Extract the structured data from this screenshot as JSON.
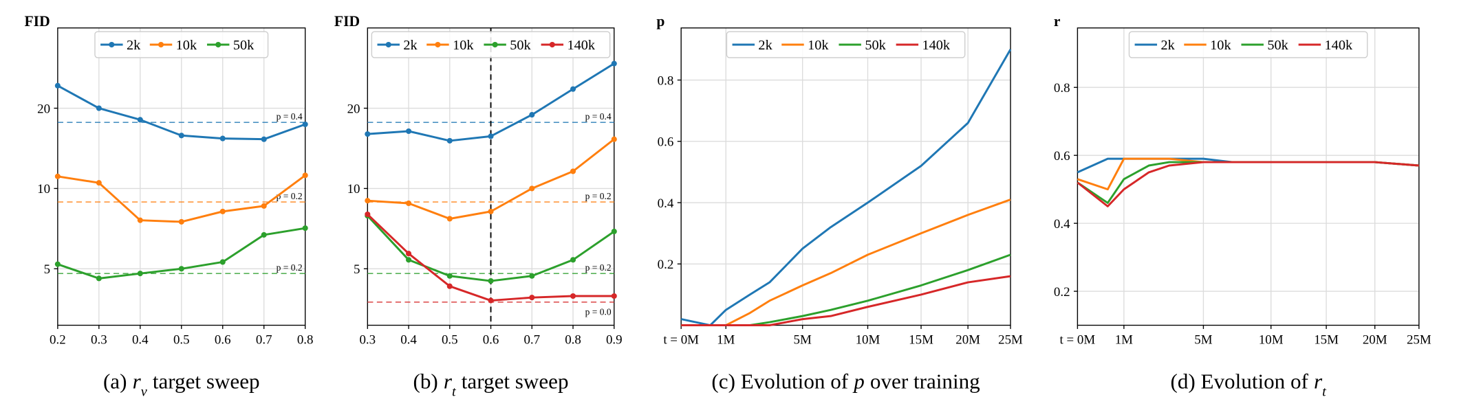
{
  "chart_data": [
    {
      "type": "line",
      "ylabel": "FID",
      "yscale": "log",
      "grid": true,
      "markers": true,
      "legend": "upper center",
      "caption": [
        {
          "text": "(a)"
        },
        {
          "text": "r",
          "style": "math"
        },
        {
          "text": "v",
          "style": "sub"
        },
        {
          "text": "target sweep"
        }
      ],
      "x": [
        0.2,
        0.3,
        0.4,
        0.5,
        0.6,
        0.7,
        0.8
      ],
      "xlim": [
        0.2,
        0.8
      ],
      "xticks": [
        0.2,
        0.3,
        0.4,
        0.5,
        0.6,
        0.7,
        0.8
      ],
      "ylim": [
        3.07,
        40
      ],
      "yticks": [
        5,
        10,
        20
      ],
      "series": [
        {
          "name": "2k",
          "color": "#1f77b4",
          "values": [
            24.3,
            20,
            18.1,
            15.8,
            15.4,
            15.3,
            17.4
          ]
        },
        {
          "name": "10k",
          "color": "#ff7f0e",
          "values": [
            11.1,
            10.5,
            7.6,
            7.5,
            8.2,
            8.6,
            11.2
          ]
        },
        {
          "name": "50k",
          "color": "#2ca02c",
          "values": [
            5.2,
            4.6,
            4.8,
            5.0,
            5.3,
            6.7,
            7.1
          ]
        }
      ],
      "refs": [
        {
          "value": 17.7,
          "label": "p = 0.4",
          "color": "#1f77b4"
        },
        {
          "value": 8.9,
          "label": "p = 0.2",
          "color": "#ff7f0e"
        },
        {
          "value": 4.8,
          "label": "p = 0.2",
          "color": "#2ca02c"
        }
      ]
    },
    {
      "type": "line",
      "ylabel": "FID",
      "yscale": "log",
      "grid": true,
      "markers": true,
      "legend": "upper center",
      "caption": [
        {
          "text": "(b)"
        },
        {
          "text": "r",
          "style": "math"
        },
        {
          "text": "t",
          "style": "sub"
        },
        {
          "text": "target sweep"
        }
      ],
      "x": [
        0.3,
        0.4,
        0.5,
        0.6,
        0.7,
        0.8,
        0.9
      ],
      "xlim": [
        0.3,
        0.9
      ],
      "xticks": [
        0.3,
        0.4,
        0.5,
        0.6,
        0.7,
        0.8,
        0.9
      ],
      "ylim": [
        3.07,
        40
      ],
      "yticks": [
        5,
        10,
        20
      ],
      "vline": 0.6,
      "series": [
        {
          "name": "2k",
          "color": "#1f77b4",
          "values": [
            16.0,
            16.4,
            15.1,
            15.7,
            18.9,
            23.6,
            29.4
          ]
        },
        {
          "name": "10k",
          "color": "#ff7f0e",
          "values": [
            9.0,
            8.8,
            7.7,
            8.2,
            10,
            11.6,
            15.3
          ]
        },
        {
          "name": "50k",
          "color": "#2ca02c",
          "values": [
            7.9,
            5.4,
            4.7,
            4.5,
            4.7,
            5.4,
            6.9
          ]
        },
        {
          "name": "140k",
          "color": "#d62728",
          "values": [
            8.0,
            5.7,
            4.3,
            3.8,
            3.9,
            3.95,
            3.95
          ]
        }
      ],
      "refs": [
        {
          "value": 17.7,
          "label": "p = 0.4",
          "color": "#1f77b4"
        },
        {
          "value": 8.9,
          "label": "p = 0.2",
          "color": "#ff7f0e"
        },
        {
          "value": 4.8,
          "label": "p = 0.2",
          "color": "#2ca02c"
        },
        {
          "value": 3.75,
          "label": "p = 0.0",
          "color": "#d62728"
        }
      ]
    },
    {
      "type": "line",
      "ylabel": "p",
      "xscale": "power",
      "xpower": 0.62,
      "grid": true,
      "markers": false,
      "legend": "upper center",
      "caption": [
        {
          "text": "(c) Evolution of"
        },
        {
          "text": "p",
          "style": "math"
        },
        {
          "text": "over training"
        }
      ],
      "x": [
        0,
        0.5,
        1,
        2,
        3,
        5,
        7,
        10,
        15,
        20,
        25
      ],
      "xlim": [
        0,
        25
      ],
      "xticks": [
        {
          "value": 0,
          "label": "t = 0M"
        },
        {
          "value": 1,
          "label": "1M"
        },
        {
          "value": 5,
          "label": "5M"
        },
        {
          "value": 10,
          "label": "10M"
        },
        {
          "value": 15,
          "label": "15M"
        },
        {
          "value": 20,
          "label": "20M"
        },
        {
          "value": 25,
          "label": "25M"
        }
      ],
      "ylim": [
        0,
        0.97
      ],
      "yticks": [
        0.2,
        0.4,
        0.6,
        0.8
      ],
      "series": [
        {
          "name": "2k",
          "color": "#1f77b4",
          "values": [
            0.02,
            0.0,
            0.05,
            0.1,
            0.14,
            0.25,
            0.32,
            0.4,
            0.52,
            0.66,
            0.9
          ]
        },
        {
          "name": "10k",
          "color": "#ff7f0e",
          "values": [
            0.0,
            0.0,
            0.0,
            0.04,
            0.08,
            0.13,
            0.17,
            0.23,
            0.3,
            0.36,
            0.41
          ]
        },
        {
          "name": "50k",
          "color": "#2ca02c",
          "values": [
            0.0,
            0.0,
            0.0,
            0.0,
            0.01,
            0.03,
            0.05,
            0.08,
            0.13,
            0.18,
            0.23
          ]
        },
        {
          "name": "140k",
          "color": "#d62728",
          "values": [
            0.0,
            0.0,
            0.0,
            0.0,
            0.0,
            0.02,
            0.03,
            0.06,
            0.1,
            0.14,
            0.16
          ]
        }
      ]
    },
    {
      "type": "line",
      "ylabel": "r",
      "xscale": "power",
      "xpower": 0.62,
      "grid": true,
      "markers": false,
      "legend": "upper center",
      "caption": [
        {
          "text": "(d) Evolution of"
        },
        {
          "text": "r",
          "style": "math"
        },
        {
          "text": "t",
          "style": "sub"
        }
      ],
      "x": [
        0,
        0.5,
        1,
        2,
        3,
        5,
        7,
        10,
        15,
        20,
        25
      ],
      "xlim": [
        0,
        25
      ],
      "xticks": [
        {
          "value": 0,
          "label": "t = 0M"
        },
        {
          "value": 1,
          "label": "1M"
        },
        {
          "value": 5,
          "label": "5M"
        },
        {
          "value": 10,
          "label": "10M"
        },
        {
          "value": 15,
          "label": "15M"
        },
        {
          "value": 20,
          "label": "20M"
        },
        {
          "value": 25,
          "label": "25M"
        }
      ],
      "ylim": [
        0.1,
        0.975
      ],
      "yticks": [
        0.2,
        0.4,
        0.6,
        0.8
      ],
      "series": [
        {
          "name": "2k",
          "color": "#1f77b4",
          "values": [
            0.55,
            0.59,
            0.59,
            0.59,
            0.59,
            0.59,
            0.58,
            0.58,
            0.58,
            0.58,
            0.57
          ]
        },
        {
          "name": "10k",
          "color": "#ff7f0e",
          "values": [
            0.53,
            0.5,
            0.59,
            0.59,
            0.59,
            0.58,
            0.58,
            0.58,
            0.58,
            0.58,
            0.57
          ]
        },
        {
          "name": "50k",
          "color": "#2ca02c",
          "values": [
            0.52,
            0.46,
            0.53,
            0.57,
            0.58,
            0.58,
            0.58,
            0.58,
            0.58,
            0.58,
            0.57
          ]
        },
        {
          "name": "140k",
          "color": "#d62728",
          "values": [
            0.52,
            0.45,
            0.5,
            0.55,
            0.57,
            0.58,
            0.58,
            0.58,
            0.58,
            0.58,
            0.57
          ]
        }
      ]
    }
  ]
}
